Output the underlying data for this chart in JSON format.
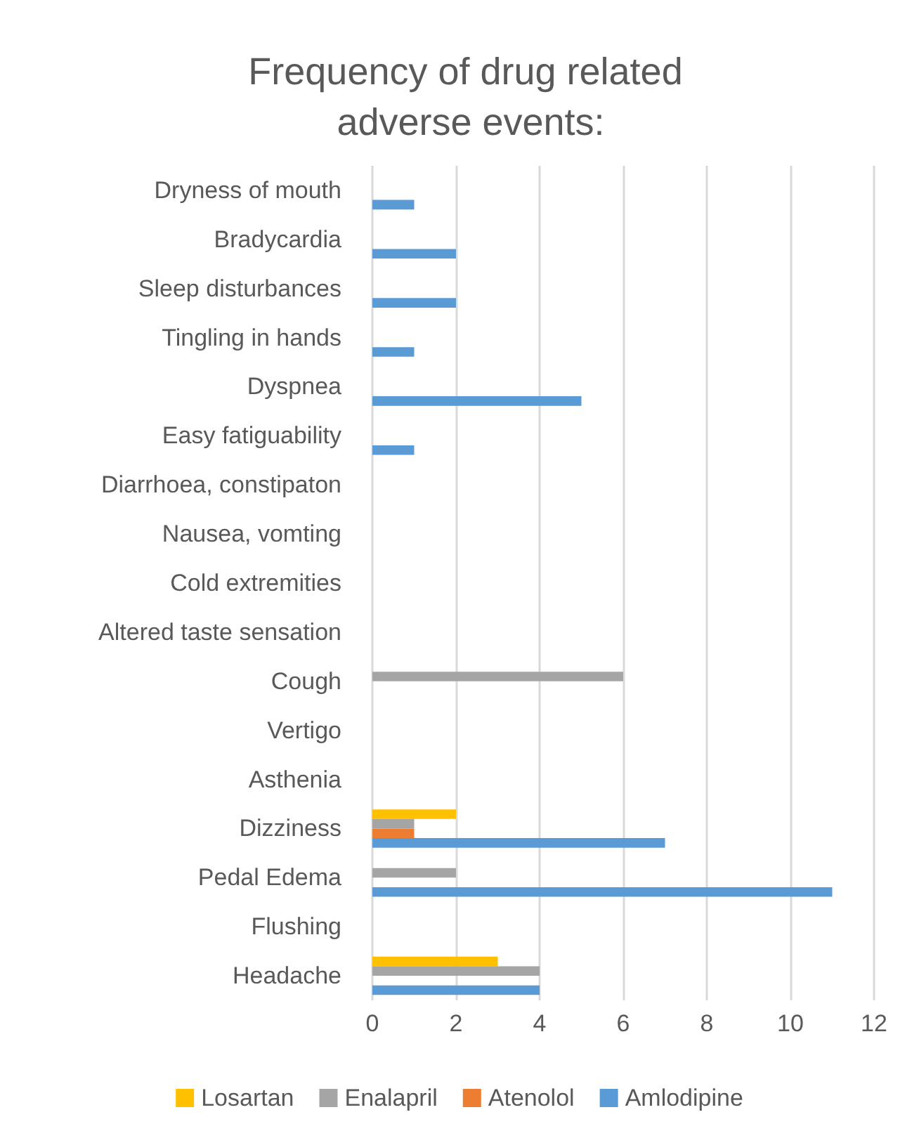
{
  "chart_data": {
    "type": "bar",
    "orientation": "horizontal",
    "title": "Frequency of drug related adverse events:",
    "categories": [
      "Dryness of mouth",
      "Bradycardia",
      "Sleep disturbances",
      "Tingling in hands",
      "Dyspnea",
      "Easy fatiguability",
      "Diarrhoea, constipaton",
      "Nausea, vomting",
      "Cold extremities",
      "Altered taste sensation",
      "Cough",
      "Vertigo",
      "Asthenia",
      "Dizziness",
      "Pedal Edema",
      "Flushing",
      "Headache"
    ],
    "series": [
      {
        "name": "Losartan",
        "color": "#ffc000",
        "values": [
          0,
          0,
          0,
          0,
          0,
          0,
          0,
          0,
          0,
          0,
          0,
          0,
          0,
          2,
          0,
          0,
          3
        ]
      },
      {
        "name": "Enalapril",
        "color": "#a5a5a5",
        "values": [
          0,
          0,
          0,
          0,
          0,
          0,
          0,
          0,
          0,
          0,
          6,
          0,
          0,
          1,
          2,
          0,
          4
        ]
      },
      {
        "name": "Atenolol",
        "color": "#ed7d31",
        "values": [
          0,
          0,
          0,
          0,
          0,
          0,
          0,
          0,
          0,
          0,
          0,
          0,
          0,
          1,
          0,
          0,
          0
        ]
      },
      {
        "name": "Amlodipine",
        "color": "#5b9bd5",
        "values": [
          1,
          2,
          2,
          1,
          5,
          1,
          0,
          0,
          0,
          0,
          0,
          0,
          0,
          7,
          11,
          0,
          4
        ]
      }
    ],
    "xlim": [
      0,
      12
    ],
    "xticks": [
      0,
      2,
      4,
      6,
      8,
      10,
      12
    ],
    "grid": "x",
    "legend": "bottom"
  }
}
